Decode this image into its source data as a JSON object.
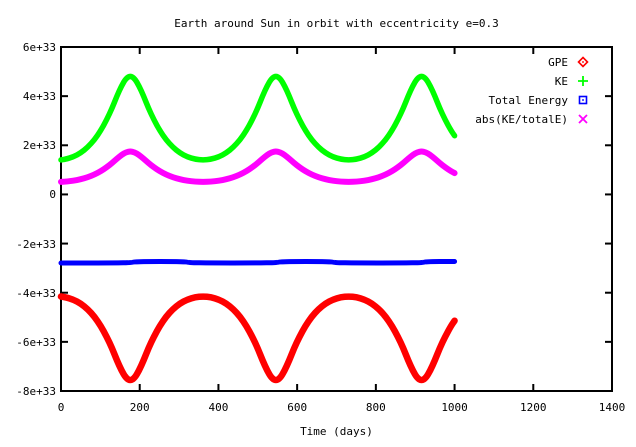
{
  "title": "Earth around Sun in orbit with eccentricity e=0.3",
  "chart_data": {
    "type": "line",
    "title": "Earth around Sun in orbit with eccentricity e=0.3",
    "xlabel": "Time (days)",
    "ylabel": "",
    "grid": false,
    "legend_position": "inside-top-right",
    "x_range": [
      0,
      1400
    ],
    "y_range_e33": [
      -8,
      6
    ],
    "y_unit": "1e33",
    "x_ticks": [
      {
        "v": 0,
        "label": "0"
      },
      {
        "v": 200,
        "label": "200"
      },
      {
        "v": 400,
        "label": "400"
      },
      {
        "v": 600,
        "label": "600"
      },
      {
        "v": 800,
        "label": "800"
      },
      {
        "v": 1000,
        "label": "1000"
      },
      {
        "v": 1200,
        "label": "1200"
      },
      {
        "v": 1400,
        "label": "1400"
      }
    ],
    "y_ticks": [
      {
        "v": -8,
        "label": "-8e+33"
      },
      {
        "v": -6,
        "label": "-6e+33"
      },
      {
        "v": -4,
        "label": "-4e+33"
      },
      {
        "v": -2,
        "label": "-2e+33"
      },
      {
        "v": 0,
        "label": "0"
      },
      {
        "v": 2,
        "label": "2e+33"
      },
      {
        "v": 4,
        "label": "4e+33"
      },
      {
        "v": 6,
        "label": "6e+33"
      }
    ],
    "axis_color": "#000000",
    "background_color": "#ffffff",
    "series": [
      {
        "name": "GPE",
        "color": "#ff0000",
        "marker": "diamond-dot",
        "line_width": 6.5,
        "points_e33": [
          [
            0,
            -4.155
          ],
          [
            11,
            -4.182
          ],
          [
            31,
            -4.278
          ],
          [
            50,
            -4.44
          ],
          [
            68,
            -4.672
          ],
          [
            85,
            -4.976
          ],
          [
            101,
            -5.35
          ],
          [
            116,
            -5.788
          ],
          [
            130,
            -6.268
          ],
          [
            142,
            -6.75
          ],
          [
            154,
            -7.175
          ],
          [
            165,
            -7.472
          ],
          [
            176,
            -7.579
          ],
          [
            187,
            -7.472
          ],
          [
            198,
            -7.175
          ],
          [
            210,
            -6.75
          ],
          [
            222,
            -6.268
          ],
          [
            236,
            -5.788
          ],
          [
            251,
            -5.35
          ],
          [
            267,
            -4.976
          ],
          [
            284,
            -4.672
          ],
          [
            302,
            -4.44
          ],
          [
            321,
            -4.278
          ],
          [
            341,
            -4.182
          ],
          [
            361,
            -4.15
          ],
          [
            381,
            -4.182
          ],
          [
            401,
            -4.278
          ],
          [
            420,
            -4.44
          ],
          [
            438,
            -4.672
          ],
          [
            455,
            -4.976
          ],
          [
            471,
            -5.35
          ],
          [
            486,
            -5.788
          ],
          [
            500,
            -6.268
          ],
          [
            512,
            -6.75
          ],
          [
            524,
            -7.175
          ],
          [
            535,
            -7.472
          ],
          [
            546,
            -7.579
          ],
          [
            557,
            -7.472
          ],
          [
            568,
            -7.175
          ],
          [
            580,
            -6.75
          ],
          [
            592,
            -6.268
          ],
          [
            606,
            -5.788
          ],
          [
            621,
            -5.35
          ],
          [
            637,
            -4.976
          ],
          [
            654,
            -4.672
          ],
          [
            672,
            -4.44
          ],
          [
            691,
            -4.278
          ],
          [
            711,
            -4.182
          ],
          [
            731,
            -4.15
          ],
          [
            751,
            -4.182
          ],
          [
            771,
            -4.278
          ],
          [
            790,
            -4.44
          ],
          [
            808,
            -4.672
          ],
          [
            825,
            -4.976
          ],
          [
            841,
            -5.35
          ],
          [
            856,
            -5.788
          ],
          [
            870,
            -6.268
          ],
          [
            882,
            -6.75
          ],
          [
            894,
            -7.175
          ],
          [
            905,
            -7.472
          ],
          [
            916,
            -7.579
          ],
          [
            927,
            -7.472
          ],
          [
            938,
            -7.175
          ],
          [
            950,
            -6.75
          ],
          [
            962,
            -6.268
          ],
          [
            976,
            -5.788
          ],
          [
            991,
            -5.35
          ],
          [
            1000,
            -5.14
          ]
        ]
      },
      {
        "name": "KE",
        "color": "#00ff00",
        "marker": "plus",
        "line_width": 5.5,
        "points_e33": [
          [
            0,
            1.405
          ],
          [
            11,
            1.432
          ],
          [
            31,
            1.528
          ],
          [
            50,
            1.69
          ],
          [
            68,
            1.922
          ],
          [
            85,
            2.226
          ],
          [
            101,
            2.6
          ],
          [
            116,
            3.038
          ],
          [
            130,
            3.518
          ],
          [
            142,
            4.0
          ],
          [
            154,
            4.425
          ],
          [
            165,
            4.722
          ],
          [
            176,
            4.829
          ],
          [
            187,
            4.722
          ],
          [
            198,
            4.425
          ],
          [
            210,
            4.0
          ],
          [
            222,
            3.518
          ],
          [
            236,
            3.038
          ],
          [
            251,
            2.6
          ],
          [
            267,
            2.226
          ],
          [
            284,
            1.922
          ],
          [
            302,
            1.69
          ],
          [
            321,
            1.528
          ],
          [
            341,
            1.432
          ],
          [
            361,
            1.4
          ],
          [
            381,
            1.432
          ],
          [
            401,
            1.528
          ],
          [
            420,
            1.69
          ],
          [
            438,
            1.922
          ],
          [
            455,
            2.226
          ],
          [
            471,
            2.6
          ],
          [
            486,
            3.038
          ],
          [
            500,
            3.518
          ],
          [
            512,
            4.0
          ],
          [
            524,
            4.425
          ],
          [
            535,
            4.722
          ],
          [
            546,
            4.829
          ],
          [
            557,
            4.722
          ],
          [
            568,
            4.425
          ],
          [
            580,
            4.0
          ],
          [
            592,
            3.518
          ],
          [
            606,
            3.038
          ],
          [
            621,
            2.6
          ],
          [
            637,
            2.226
          ],
          [
            654,
            1.922
          ],
          [
            672,
            1.69
          ],
          [
            691,
            1.528
          ],
          [
            711,
            1.432
          ],
          [
            731,
            1.4
          ],
          [
            751,
            1.432
          ],
          [
            771,
            1.528
          ],
          [
            790,
            1.69
          ],
          [
            808,
            1.922
          ],
          [
            825,
            2.226
          ],
          [
            841,
            2.6
          ],
          [
            856,
            3.038
          ],
          [
            870,
            3.518
          ],
          [
            882,
            4.0
          ],
          [
            894,
            4.425
          ],
          [
            905,
            4.722
          ],
          [
            916,
            4.829
          ],
          [
            927,
            4.722
          ],
          [
            938,
            4.425
          ],
          [
            950,
            4.0
          ],
          [
            962,
            3.518
          ],
          [
            976,
            3.038
          ],
          [
            991,
            2.6
          ],
          [
            1000,
            2.39
          ]
        ]
      },
      {
        "name": "Total Energy",
        "color": "#0000ff",
        "marker": "square-dot",
        "line_width": 5,
        "points_e33": [
          [
            0,
            -2.79
          ],
          [
            180,
            -2.79
          ],
          [
            184,
            -2.73
          ],
          [
            320,
            -2.73
          ],
          [
            324,
            -2.79
          ],
          [
            550,
            -2.79
          ],
          [
            554,
            -2.73
          ],
          [
            690,
            -2.73
          ],
          [
            694,
            -2.79
          ],
          [
            920,
            -2.79
          ],
          [
            924,
            -2.73
          ],
          [
            1000,
            -2.73
          ]
        ]
      },
      {
        "name": "abs(KE/totalE)",
        "color": "#ff00ff",
        "marker": "cross",
        "line_width": 6,
        "points_e33": [
          [
            0,
            0.511
          ],
          [
            11,
            0.521
          ],
          [
            31,
            0.556
          ],
          [
            50,
            0.615
          ],
          [
            68,
            0.699
          ],
          [
            85,
            0.809
          ],
          [
            101,
            0.945
          ],
          [
            116,
            1.105
          ],
          [
            130,
            1.279
          ],
          [
            142,
            1.455
          ],
          [
            154,
            1.609
          ],
          [
            165,
            1.717
          ],
          [
            176,
            1.756
          ],
          [
            187,
            1.717
          ],
          [
            198,
            1.609
          ],
          [
            210,
            1.455
          ],
          [
            222,
            1.279
          ],
          [
            236,
            1.105
          ],
          [
            251,
            0.945
          ],
          [
            267,
            0.809
          ],
          [
            284,
            0.699
          ],
          [
            302,
            0.615
          ],
          [
            321,
            0.556
          ],
          [
            341,
            0.521
          ],
          [
            361,
            0.509
          ],
          [
            381,
            0.521
          ],
          [
            401,
            0.556
          ],
          [
            420,
            0.615
          ],
          [
            438,
            0.699
          ],
          [
            455,
            0.809
          ],
          [
            471,
            0.945
          ],
          [
            486,
            1.105
          ],
          [
            500,
            1.279
          ],
          [
            512,
            1.455
          ],
          [
            524,
            1.609
          ],
          [
            535,
            1.717
          ],
          [
            546,
            1.756
          ],
          [
            557,
            1.717
          ],
          [
            568,
            1.609
          ],
          [
            580,
            1.455
          ],
          [
            592,
            1.279
          ],
          [
            606,
            1.105
          ],
          [
            621,
            0.945
          ],
          [
            637,
            0.809
          ],
          [
            654,
            0.699
          ],
          [
            672,
            0.615
          ],
          [
            691,
            0.556
          ],
          [
            711,
            0.521
          ],
          [
            731,
            0.509
          ],
          [
            751,
            0.521
          ],
          [
            771,
            0.556
          ],
          [
            790,
            0.615
          ],
          [
            808,
            0.699
          ],
          [
            825,
            0.809
          ],
          [
            841,
            0.945
          ],
          [
            856,
            1.105
          ],
          [
            870,
            1.279
          ],
          [
            882,
            1.455
          ],
          [
            894,
            1.609
          ],
          [
            905,
            1.717
          ],
          [
            916,
            1.756
          ],
          [
            927,
            1.717
          ],
          [
            938,
            1.609
          ],
          [
            950,
            1.455
          ],
          [
            962,
            1.279
          ],
          [
            976,
            1.105
          ],
          [
            991,
            0.945
          ],
          [
            1000,
            0.869
          ]
        ]
      }
    ]
  }
}
